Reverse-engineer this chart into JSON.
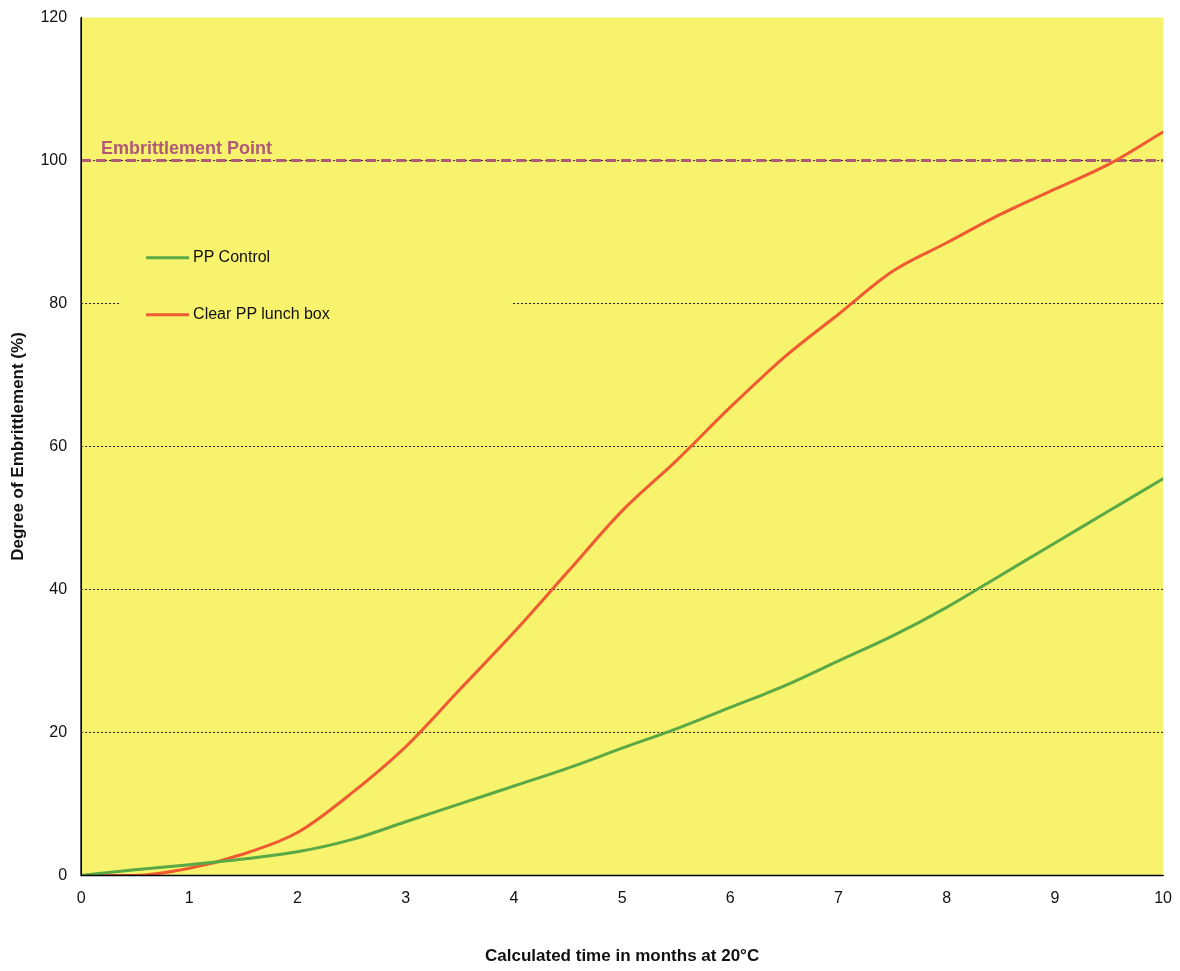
{
  "chart_data": {
    "type": "line",
    "xlabel": "Calculated time in months at 20°C",
    "ylabel": "Degree of Embrittlement (%)",
    "xlim": [
      0,
      10
    ],
    "xticks": [
      0,
      1,
      2,
      3,
      4,
      5,
      6,
      7,
      8,
      9,
      10
    ],
    "ylim": [
      0,
      120
    ],
    "yticks": [
      0,
      20,
      40,
      60,
      80,
      100,
      120
    ],
    "grid": "y",
    "legend": "left",
    "marker": "none",
    "line_style": "solid",
    "ref_lines": [
      {
        "axis": "y",
        "value": 100,
        "label": "Embrittlement Point",
        "color": "#b05a78",
        "line_style": "dashed"
      }
    ],
    "series": [
      {
        "name": "PP Control",
        "color": "#5aa846",
        "x": [
          0,
          0.5,
          1,
          1.5,
          2,
          2.5,
          3,
          3.5,
          4,
          4.5,
          5,
          5.5,
          6,
          6.5,
          7,
          7.5,
          8,
          8.5,
          9,
          9.5,
          10
        ],
        "values": [
          0,
          0.8,
          1.5,
          2.3,
          3.3,
          5,
          7.5,
          10,
          12.5,
          15,
          17.8,
          20.5,
          23.5,
          26.5,
          30,
          33.5,
          37.5,
          42,
          46.5,
          51,
          55.5
        ]
      },
      {
        "name": "Clear PP lunch box",
        "color": "#f05a32",
        "x": [
          0,
          0.5,
          1,
          1.5,
          2,
          2.5,
          3,
          3.5,
          4,
          4.5,
          5,
          5.5,
          6,
          6.5,
          7,
          7.5,
          8,
          8.5,
          9,
          9.5,
          10
        ],
        "values": [
          0,
          0,
          1,
          3,
          6,
          11.5,
          18,
          26,
          34,
          42.5,
          51,
          58,
          65.5,
          72.5,
          78.5,
          84.5,
          88.5,
          92.5,
          96,
          99.5,
          104
        ]
      }
    ]
  }
}
